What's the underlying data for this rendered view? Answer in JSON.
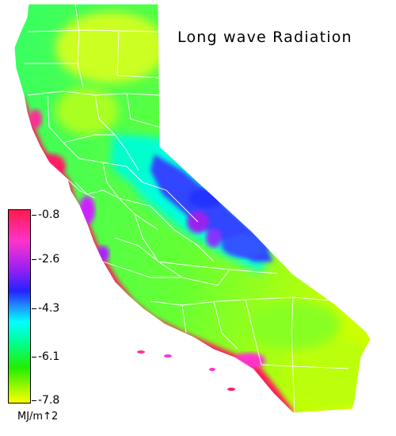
{
  "map": {
    "title": "Long wave Radiation",
    "region_shape": "california-state-outline",
    "boundaries": "county-lines",
    "boundary_color": "#ffffff"
  },
  "legend": {
    "ticks": [
      "-0.8",
      "-2.6",
      "-4.3",
      "-6.1",
      "-7.8"
    ],
    "unit": "MJ/m↑2",
    "colors": [
      "#ff1a4d",
      "#ff33cc",
      "#a020f0",
      "#2222ff",
      "#1e90ff",
      "#00ffff",
      "#00ff99",
      "#22ee00",
      "#ffff00"
    ]
  }
}
